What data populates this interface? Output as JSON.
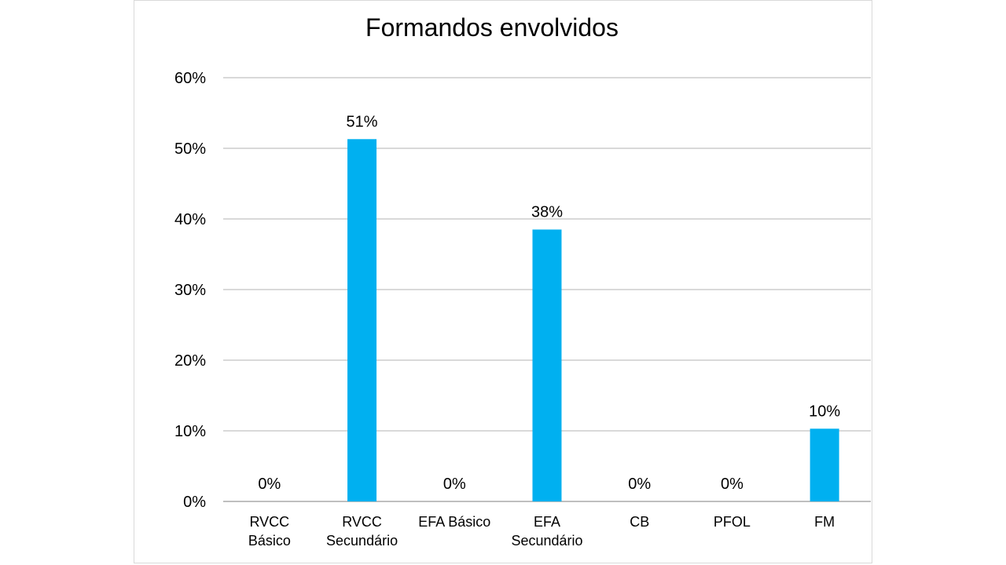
{
  "chart_data": {
    "type": "bar",
    "title": "Formandos envolvidos",
    "categories": [
      [
        "RVCC",
        "Básico"
      ],
      [
        "RVCC",
        "Secundário"
      ],
      [
        "EFA Básico"
      ],
      [
        "EFA",
        "Secundário"
      ],
      [
        "CB"
      ],
      [
        "PFOL"
      ],
      [
        "FM"
      ]
    ],
    "values": [
      0,
      51.3,
      0,
      38.5,
      0,
      0,
      10.3
    ],
    "data_labels": [
      "0%",
      "51%",
      "0%",
      "38%",
      "0%",
      "0%",
      "10%"
    ],
    "ylim": [
      0,
      60
    ],
    "yticks": [
      0,
      10,
      20,
      30,
      40,
      50,
      60
    ],
    "ytick_labels": [
      "0%",
      "10%",
      "20%",
      "30%",
      "40%",
      "50%",
      "60%"
    ],
    "xlabel": "",
    "ylabel": "",
    "grid": true,
    "legend": "none",
    "colors": {
      "bar": "#00B0F0",
      "grid": "#d9d9d9",
      "axis": "#bfbfbf"
    }
  }
}
